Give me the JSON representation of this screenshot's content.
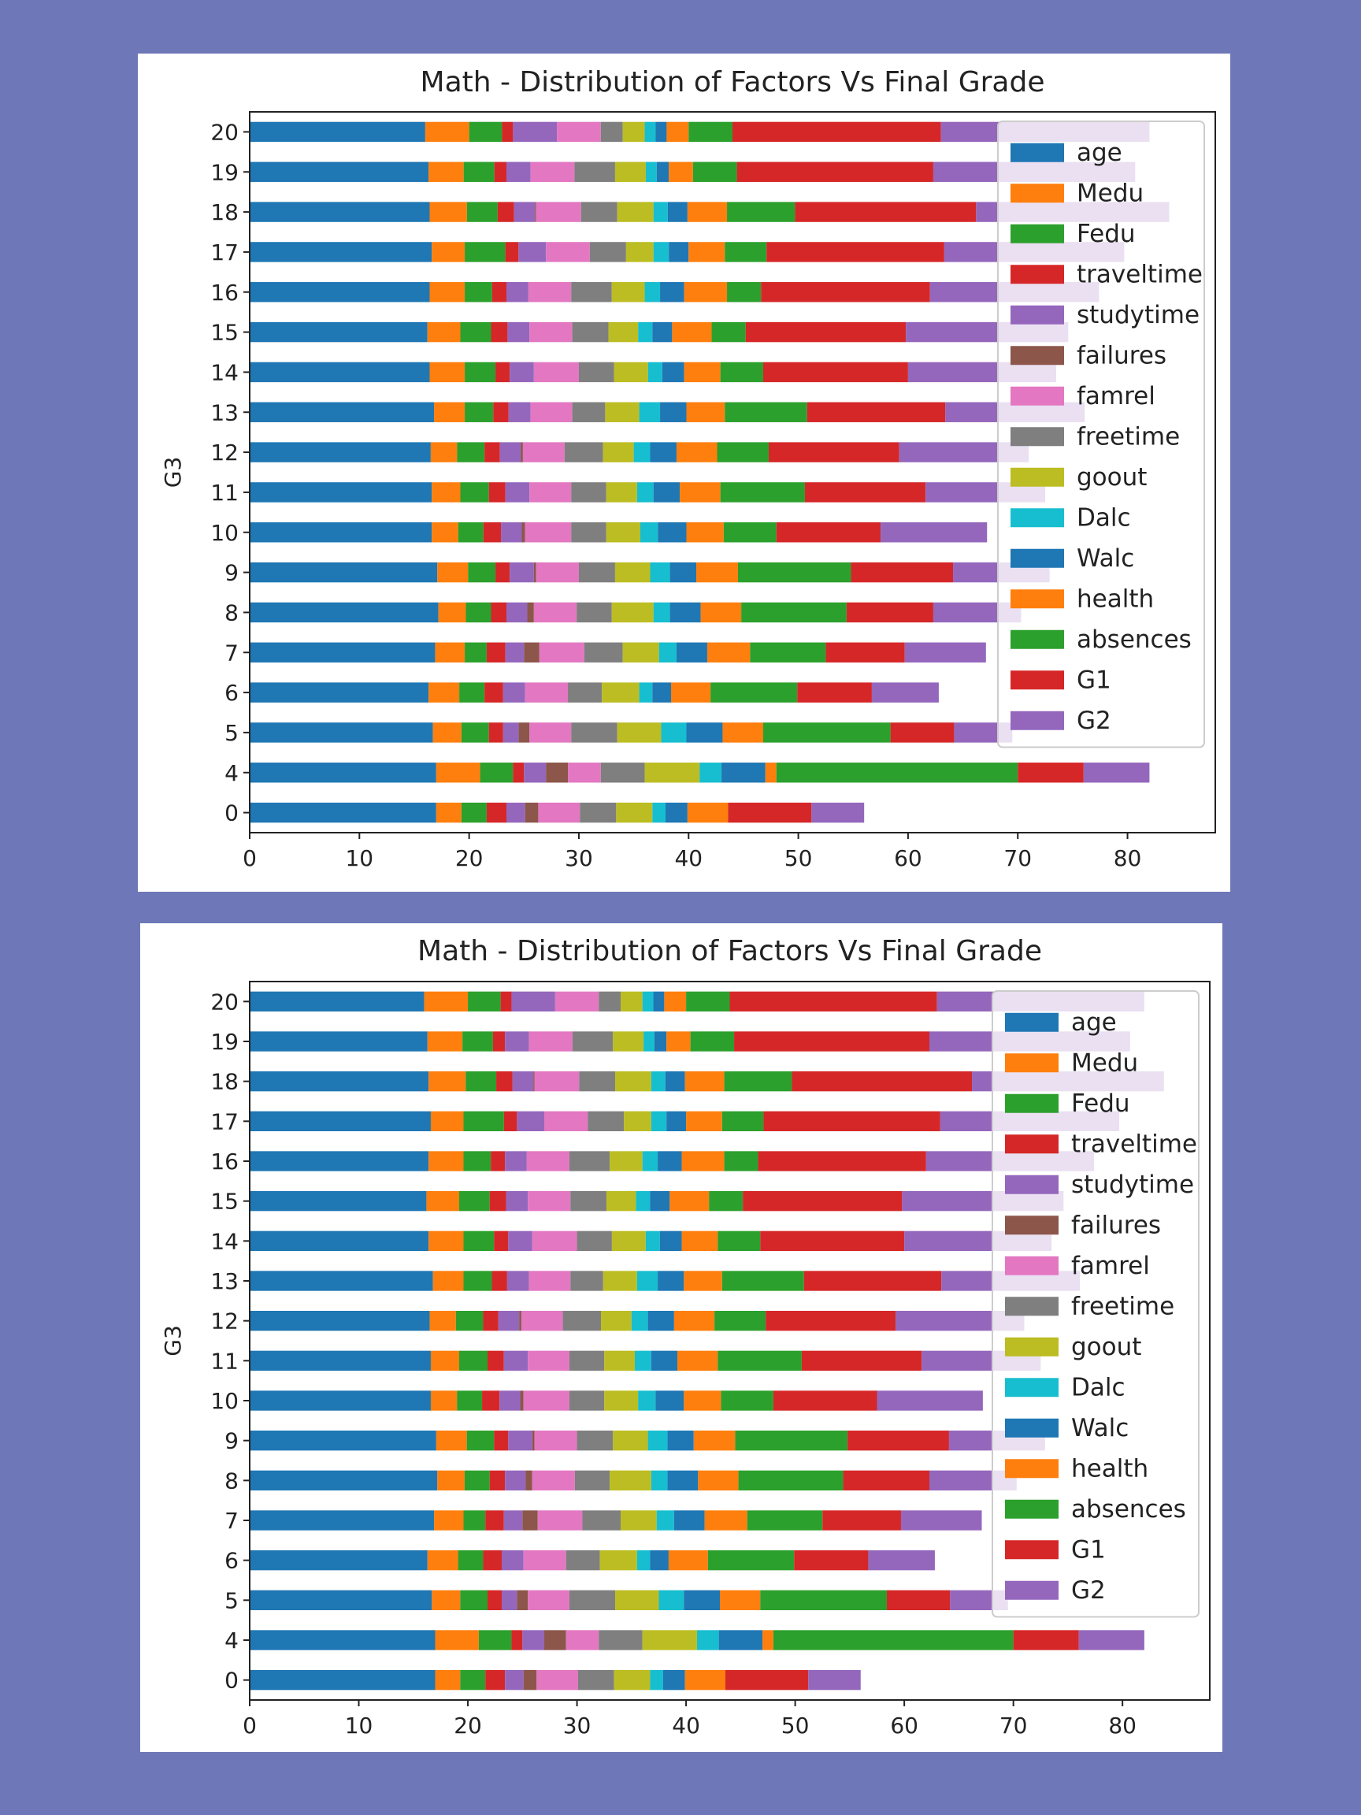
{
  "chart_data": [
    {
      "type": "bar",
      "orientation": "horizontal",
      "stacked": true,
      "title": "Math - Distribution of Factors Vs Final Grade",
      "xlabel": "",
      "ylabel": "G3",
      "xlim": [
        0,
        88
      ],
      "xticks": [
        0,
        10,
        20,
        30,
        40,
        50,
        60,
        70,
        80
      ],
      "legend_position": "upper right",
      "grid": false,
      "categories": [
        "0",
        "4",
        "5",
        "6",
        "7",
        "8",
        "9",
        "10",
        "11",
        "12",
        "13",
        "14",
        "15",
        "16",
        "17",
        "18",
        "19",
        "20"
      ],
      "series": [
        {
          "name": "age",
          "color": "#1f77b4",
          "values": [
            17.0,
            17.0,
            16.7,
            16.3,
            16.9,
            17.2,
            17.1,
            16.6,
            16.6,
            16.5,
            16.8,
            16.4,
            16.2,
            16.4,
            16.6,
            16.4,
            16.3,
            16.0
          ]
        },
        {
          "name": "Medu",
          "color": "#ff7f0e",
          "values": [
            2.3,
            4.0,
            2.6,
            2.8,
            2.7,
            2.5,
            2.8,
            2.4,
            2.6,
            2.4,
            2.8,
            3.2,
            3.0,
            3.2,
            3.0,
            3.4,
            3.2,
            4.0
          ]
        },
        {
          "name": "Fedu",
          "color": "#2ca02c",
          "values": [
            2.3,
            3.0,
            2.5,
            2.3,
            2.0,
            2.3,
            2.5,
            2.3,
            2.6,
            2.5,
            2.6,
            2.8,
            2.8,
            2.5,
            3.7,
            2.8,
            2.8,
            3.0
          ]
        },
        {
          "name": "traveltime",
          "color": "#d62728",
          "values": [
            1.8,
            1.0,
            1.3,
            1.7,
            1.7,
            1.4,
            1.3,
            1.6,
            1.5,
            1.4,
            1.4,
            1.3,
            1.5,
            1.3,
            1.2,
            1.5,
            1.1,
            1.0
          ]
        },
        {
          "name": "studytime",
          "color": "#9467bd",
          "values": [
            1.7,
            2.0,
            1.4,
            2.0,
            1.7,
            1.9,
            2.2,
            1.9,
            2.2,
            1.9,
            2.0,
            2.2,
            2.0,
            2.0,
            2.5,
            1.9,
            2.2,
            4.0
          ]
        },
        {
          "name": "failures",
          "color": "#8c564b",
          "values": [
            1.2,
            2.0,
            1.0,
            0.0,
            1.4,
            0.6,
            0.2,
            0.3,
            0.0,
            0.2,
            0.0,
            0.0,
            0.0,
            0.0,
            0.0,
            0.1,
            0.0,
            0.0
          ]
        },
        {
          "name": "famrel",
          "color": "#e377c2",
          "values": [
            3.8,
            3.0,
            3.8,
            3.9,
            4.1,
            3.9,
            3.9,
            4.2,
            3.8,
            3.8,
            3.8,
            4.1,
            3.9,
            3.9,
            4.0,
            4.1,
            4.0,
            4.0
          ]
        },
        {
          "name": "freetime",
          "color": "#7f7f7f",
          "values": [
            3.3,
            4.0,
            4.2,
            3.1,
            3.5,
            3.2,
            3.3,
            3.2,
            3.2,
            3.5,
            3.0,
            3.2,
            3.3,
            3.7,
            3.3,
            3.3,
            3.7,
            2.0
          ]
        },
        {
          "name": "goout",
          "color": "#bcbd22",
          "values": [
            3.3,
            5.0,
            4.0,
            3.4,
            3.3,
            3.8,
            3.2,
            3.1,
            2.8,
            2.8,
            3.1,
            3.1,
            2.7,
            3.0,
            2.5,
            3.3,
            2.8,
            2.0
          ]
        },
        {
          "name": "Dalc",
          "color": "#17becf",
          "values": [
            1.2,
            2.0,
            2.3,
            1.2,
            1.6,
            1.5,
            1.8,
            1.6,
            1.5,
            1.5,
            1.9,
            1.3,
            1.3,
            1.4,
            1.4,
            1.3,
            1.0,
            1.0
          ]
        },
        {
          "name": "Walc",
          "color": "#1f77b4",
          "values": [
            2.0,
            4.0,
            3.3,
            1.7,
            2.8,
            2.8,
            2.4,
            2.6,
            2.4,
            2.4,
            2.4,
            2.0,
            1.8,
            2.2,
            1.8,
            1.8,
            1.1,
            1.0
          ]
        },
        {
          "name": "health",
          "color": "#ff7f0e",
          "values": [
            3.7,
            1.0,
            3.7,
            3.6,
            3.9,
            3.7,
            3.8,
            3.4,
            3.7,
            3.7,
            3.5,
            3.3,
            3.6,
            3.9,
            3.3,
            3.6,
            2.2,
            2.0
          ]
        },
        {
          "name": "absences",
          "color": "#2ca02c",
          "values": [
            0.0,
            22.0,
            11.6,
            7.9,
            6.9,
            9.6,
            10.3,
            4.8,
            7.7,
            4.7,
            7.5,
            3.9,
            3.1,
            3.1,
            3.8,
            6.2,
            4.0,
            4.0
          ]
        },
        {
          "name": "G1",
          "color": "#d62728",
          "values": [
            7.6,
            6.0,
            5.8,
            6.8,
            7.2,
            7.9,
            9.3,
            9.5,
            11.0,
            11.9,
            12.6,
            13.2,
            14.6,
            15.4,
            16.2,
            16.5,
            17.9,
            19.0
          ]
        },
        {
          "name": "G2",
          "color": "#9467bd",
          "values": [
            4.8,
            6.0,
            5.3,
            6.1,
            7.4,
            8.0,
            8.8,
            9.7,
            10.9,
            11.8,
            12.7,
            13.5,
            14.8,
            15.4,
            16.4,
            17.6,
            18.4,
            19.0
          ]
        }
      ]
    },
    {
      "type": "bar",
      "orientation": "horizontal",
      "stacked": true,
      "title": "Math - Distribution of Factors Vs Final Grade",
      "xlabel": "",
      "ylabel": "G3",
      "xlim": [
        0,
        88
      ],
      "xticks": [
        0,
        10,
        20,
        30,
        40,
        50,
        60,
        70,
        80
      ],
      "legend_position": "upper right",
      "grid": false,
      "categories": [
        "0",
        "4",
        "5",
        "6",
        "7",
        "8",
        "9",
        "10",
        "11",
        "12",
        "13",
        "14",
        "15",
        "16",
        "17",
        "18",
        "19",
        "20"
      ],
      "series": [
        {
          "name": "age",
          "color": "#1f77b4",
          "values": [
            17.0,
            17.0,
            16.7,
            16.3,
            16.9,
            17.2,
            17.1,
            16.6,
            16.6,
            16.5,
            16.8,
            16.4,
            16.2,
            16.4,
            16.6,
            16.4,
            16.3,
            16.0
          ]
        },
        {
          "name": "Medu",
          "color": "#ff7f0e",
          "values": [
            2.3,
            4.0,
            2.6,
            2.8,
            2.7,
            2.5,
            2.8,
            2.4,
            2.6,
            2.4,
            2.8,
            3.2,
            3.0,
            3.2,
            3.0,
            3.4,
            3.2,
            4.0
          ]
        },
        {
          "name": "Fedu",
          "color": "#2ca02c",
          "values": [
            2.3,
            3.0,
            2.5,
            2.3,
            2.0,
            2.3,
            2.5,
            2.3,
            2.6,
            2.5,
            2.6,
            2.8,
            2.8,
            2.5,
            3.7,
            2.8,
            2.8,
            3.0
          ]
        },
        {
          "name": "traveltime",
          "color": "#d62728",
          "values": [
            1.8,
            1.0,
            1.3,
            1.7,
            1.7,
            1.4,
            1.3,
            1.6,
            1.5,
            1.4,
            1.4,
            1.3,
            1.5,
            1.3,
            1.2,
            1.5,
            1.1,
            1.0
          ]
        },
        {
          "name": "studytime",
          "color": "#9467bd",
          "values": [
            1.7,
            2.0,
            1.4,
            2.0,
            1.7,
            1.9,
            2.2,
            1.9,
            2.2,
            1.9,
            2.0,
            2.2,
            2.0,
            2.0,
            2.5,
            1.9,
            2.2,
            4.0
          ]
        },
        {
          "name": "failures",
          "color": "#8c564b",
          "values": [
            1.2,
            2.0,
            1.0,
            0.0,
            1.4,
            0.6,
            0.2,
            0.3,
            0.0,
            0.2,
            0.0,
            0.0,
            0.0,
            0.0,
            0.0,
            0.1,
            0.0,
            0.0
          ]
        },
        {
          "name": "famrel",
          "color": "#e377c2",
          "values": [
            3.8,
            3.0,
            3.8,
            3.9,
            4.1,
            3.9,
            3.9,
            4.2,
            3.8,
            3.8,
            3.8,
            4.1,
            3.9,
            3.9,
            4.0,
            4.1,
            4.0,
            4.0
          ]
        },
        {
          "name": "freetime",
          "color": "#7f7f7f",
          "values": [
            3.3,
            4.0,
            4.2,
            3.1,
            3.5,
            3.2,
            3.3,
            3.2,
            3.2,
            3.5,
            3.0,
            3.2,
            3.3,
            3.7,
            3.3,
            3.3,
            3.7,
            2.0
          ]
        },
        {
          "name": "goout",
          "color": "#bcbd22",
          "values": [
            3.3,
            5.0,
            4.0,
            3.4,
            3.3,
            3.8,
            3.2,
            3.1,
            2.8,
            2.8,
            3.1,
            3.1,
            2.7,
            3.0,
            2.5,
            3.3,
            2.8,
            2.0
          ]
        },
        {
          "name": "Dalc",
          "color": "#17becf",
          "values": [
            1.2,
            2.0,
            2.3,
            1.2,
            1.6,
            1.5,
            1.8,
            1.6,
            1.5,
            1.5,
            1.9,
            1.3,
            1.3,
            1.4,
            1.4,
            1.3,
            1.0,
            1.0
          ]
        },
        {
          "name": "Walc",
          "color": "#1f77b4",
          "values": [
            2.0,
            4.0,
            3.3,
            1.7,
            2.8,
            2.8,
            2.4,
            2.6,
            2.4,
            2.4,
            2.4,
            2.0,
            1.8,
            2.2,
            1.8,
            1.8,
            1.1,
            1.0
          ]
        },
        {
          "name": "health",
          "color": "#ff7f0e",
          "values": [
            3.7,
            1.0,
            3.7,
            3.6,
            3.9,
            3.7,
            3.8,
            3.4,
            3.7,
            3.7,
            3.5,
            3.3,
            3.6,
            3.9,
            3.3,
            3.6,
            2.2,
            2.0
          ]
        },
        {
          "name": "absences",
          "color": "#2ca02c",
          "values": [
            0.0,
            22.0,
            11.6,
            7.9,
            6.9,
            9.6,
            10.3,
            4.8,
            7.7,
            4.7,
            7.5,
            3.9,
            3.1,
            3.1,
            3.8,
            6.2,
            4.0,
            4.0
          ]
        },
        {
          "name": "G1",
          "color": "#d62728",
          "values": [
            7.6,
            6.0,
            5.8,
            6.8,
            7.2,
            7.9,
            9.3,
            9.5,
            11.0,
            11.9,
            12.6,
            13.2,
            14.6,
            15.4,
            16.2,
            16.5,
            17.9,
            19.0
          ]
        },
        {
          "name": "G2",
          "color": "#9467bd",
          "values": [
            4.8,
            6.0,
            5.3,
            6.1,
            7.4,
            8.0,
            8.8,
            9.7,
            10.9,
            11.8,
            12.7,
            13.5,
            14.8,
            15.4,
            16.4,
            17.6,
            18.4,
            19.0
          ]
        }
      ]
    }
  ]
}
